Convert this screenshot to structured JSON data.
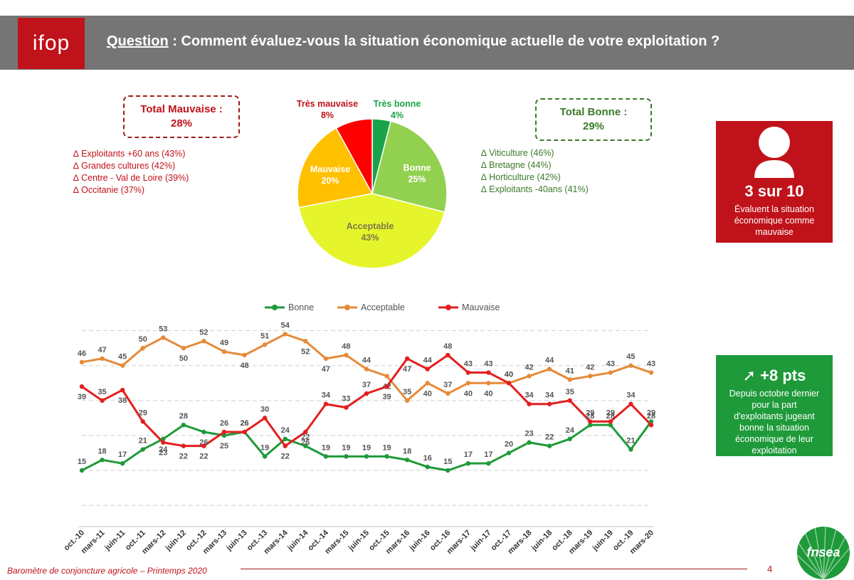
{
  "header": {
    "logo_text": "ifop",
    "question_label": "Question",
    "question_text": " : Comment évaluez-vous la situation économique actuelle de votre exploitation ?"
  },
  "total_bad": {
    "title": "Total Mauvaise :",
    "value": "28%"
  },
  "total_good": {
    "title": "Total Bonne :",
    "value": "29%"
  },
  "bad_list": [
    "∆ Exploitants +60 ans (43%)",
    "∆ Grandes cultures (42%)",
    "∆ Centre - Val de Loire (39%)",
    "∆ Occitanie (37%)"
  ],
  "good_list": [
    "∆ Viticulture (46%)",
    "∆ Bretagne (44%)",
    "∆ Horticulture (42%)",
    "∆ Exploitants -40ans (41%)"
  ],
  "card_red": {
    "big": "3 sur 10",
    "text": [
      "Évaluent la situation",
      "économique comme",
      "mauvaise"
    ]
  },
  "card_green": {
    "big": "➚ +8 pts",
    "text": [
      "Depuis octobre dernier",
      "pour la part",
      "d'exploitants jugeant",
      "bonne la situation",
      "économique de leur",
      "exploitation"
    ]
  },
  "footer": {
    "text": "Baromètre de conjoncture agricole – Printemps 2020",
    "page": "4",
    "brand": "fnsea"
  },
  "colors": {
    "red": "#C0121A",
    "green": "#1F9A3A",
    "orange": "#E58A3A",
    "gray_header": "#757575"
  },
  "chart_data": [
    {
      "type": "pie",
      "slices": [
        {
          "label": "Très bonne",
          "value": 4,
          "display": "4%",
          "color": "#1AA34A"
        },
        {
          "label": "Bonne",
          "value": 25,
          "display": "25%",
          "color": "#92D050"
        },
        {
          "label": "Acceptable",
          "value": 43,
          "display": "43%",
          "color": "#E6F52B"
        },
        {
          "label": "Mauvaise",
          "value": 20,
          "display": "20%",
          "color": "#FFC000"
        },
        {
          "label": "Très mauvaise",
          "value": 8,
          "display": "8%",
          "color": "#FF0000"
        }
      ]
    },
    {
      "type": "line",
      "x": [
        "oct.-10",
        "mars-11",
        "juin-11",
        "oct.-11",
        "mars-12",
        "juin-12",
        "oct.-12",
        "mars-13",
        "juin-13",
        "oct.-13",
        "mars-14",
        "juin-14",
        "oct.-14",
        "mars-15",
        "juin-15",
        "oct.-15",
        "mars-16",
        "juin-16",
        "oct.-16",
        "mars-17",
        "juin-17",
        "oct.-17",
        "mars-18",
        "juin-18",
        "oct.-18",
        "mars-19",
        "juin-19",
        "oct.-19",
        "mars-20"
      ],
      "series": [
        {
          "name": "Bonne",
          "color": "#1F9A3A",
          "values": [
            15,
            18,
            17,
            21,
            24,
            28,
            26,
            25,
            26,
            19,
            24,
            22,
            19,
            19,
            19,
            19,
            18,
            16,
            15,
            17,
            17,
            20,
            23,
            22,
            24,
            28,
            28,
            21,
            29
          ]
        },
        {
          "name": "Acceptable",
          "color": "#E58A3A",
          "values": [
            46,
            47,
            45,
            50,
            53,
            50,
            52,
            49,
            48,
            51,
            54,
            52,
            47,
            48,
            44,
            42,
            35,
            40,
            37,
            40,
            40,
            40,
            42,
            44,
            41,
            42,
            43,
            45,
            43
          ]
        },
        {
          "name": "Mauvaise",
          "color": "#E41E1E",
          "values": [
            39,
            35,
            38,
            29,
            23,
            22,
            22,
            26,
            26,
            30,
            22,
            26,
            34,
            33,
            37,
            39,
            47,
            44,
            48,
            43,
            43,
            40,
            34,
            34,
            35,
            29,
            29,
            34,
            28
          ]
        }
      ],
      "legend": "top",
      "grid": true
    }
  ]
}
